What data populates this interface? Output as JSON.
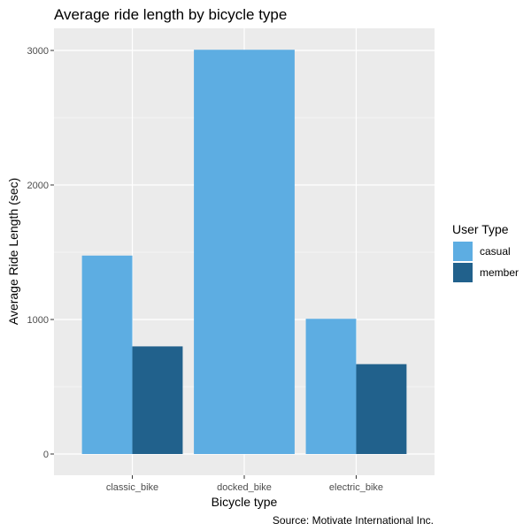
{
  "chart_data": {
    "type": "bar",
    "title": "Average ride length by bicycle type",
    "xlabel": "Bicycle type",
    "ylabel": "Average Ride Length (sec)",
    "caption": "Source: Motivate International Inc.",
    "categories": [
      "classic_bike",
      "docked_bike",
      "electric_bike"
    ],
    "series": [
      {
        "name": "casual",
        "values": [
          1475,
          3005,
          1005
        ],
        "color": "#5DADE2"
      },
      {
        "name": "member",
        "values": [
          800,
          null,
          668
        ],
        "color": "#21618C"
      }
    ],
    "ylim": [
      0,
      3200
    ],
    "yticks": [
      0,
      1000,
      2000,
      3000
    ],
    "grid": true,
    "legend": {
      "title": "User Type",
      "position": "right"
    },
    "panel_background": "#EBEBEB",
    "grid_color": "#FFFFFF"
  }
}
